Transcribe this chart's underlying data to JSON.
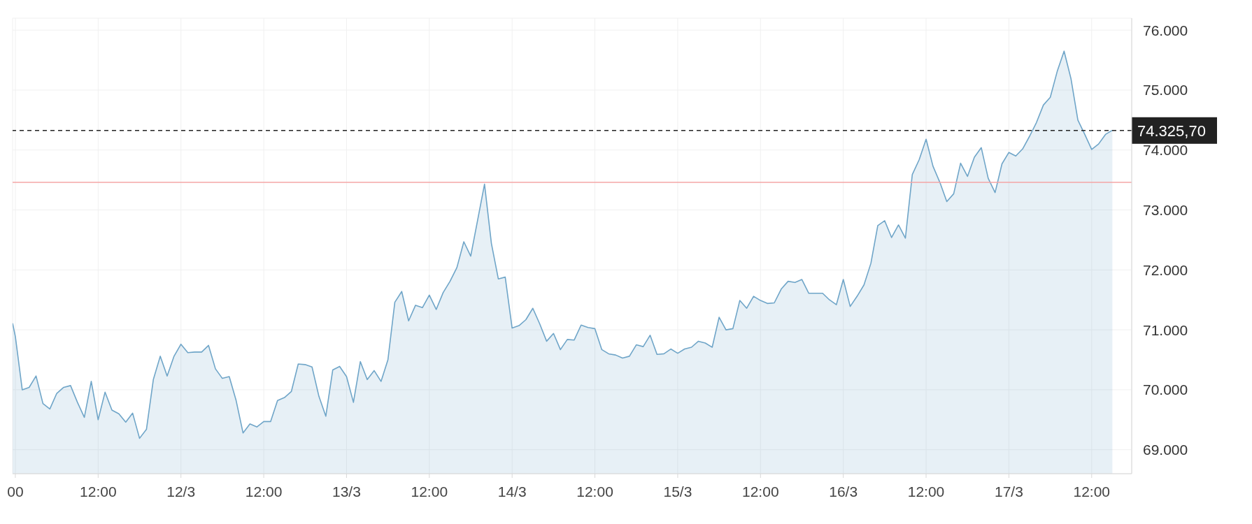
{
  "chart_data": {
    "type": "area",
    "x": [
      "--03-10T23:36",
      "--03-11T00:00",
      "--03-11T01:00",
      "--03-11T02:00",
      "--03-11T03:00",
      "--03-11T04:00",
      "--03-11T05:00",
      "--03-11T06:00",
      "--03-11T07:00",
      "--03-11T08:00",
      "--03-11T09:00",
      "--03-11T10:00",
      "--03-11T11:00",
      "--03-11T12:00",
      "--03-11T13:00",
      "--03-11T14:00",
      "--03-11T15:00",
      "--03-11T16:00",
      "--03-11T17:00",
      "--03-11T18:00",
      "--03-11T19:00",
      "--03-11T20:00",
      "--03-11T21:00",
      "--03-11T22:00",
      "--03-11T23:00",
      "--03-12T00:00",
      "--03-12T01:00",
      "--03-12T02:00",
      "--03-12T03:00",
      "--03-12T04:00",
      "--03-12T05:00",
      "--03-12T06:00",
      "--03-12T07:00",
      "--03-12T08:00",
      "--03-12T09:00",
      "--03-12T10:00",
      "--03-12T11:00",
      "--03-12T12:00",
      "--03-12T13:00",
      "--03-12T14:00",
      "--03-12T15:00",
      "--03-12T16:00",
      "--03-12T17:00",
      "--03-12T18:00",
      "--03-12T19:00",
      "--03-12T20:00",
      "--03-12T21:00",
      "--03-12T22:00",
      "--03-12T23:00",
      "--03-13T00:00",
      "--03-13T01:00",
      "--03-13T02:00",
      "--03-13T03:00",
      "--03-13T04:00",
      "--03-13T05:00",
      "--03-13T06:00",
      "--03-13T07:00",
      "--03-13T08:00",
      "--03-13T09:00",
      "--03-13T10:00",
      "--03-13T11:00",
      "--03-13T12:00",
      "--03-13T13:00",
      "--03-13T14:00",
      "--03-13T15:00",
      "--03-13T16:00",
      "--03-13T17:00",
      "--03-13T18:00",
      "--03-13T19:00",
      "--03-13T20:00",
      "--03-13T21:00",
      "--03-13T22:00",
      "--03-13T23:00",
      "--03-14T00:00",
      "--03-14T01:00",
      "--03-14T02:00",
      "--03-14T03:00",
      "--03-14T04:00",
      "--03-14T05:00",
      "--03-14T06:00",
      "--03-14T07:00",
      "--03-14T08:00",
      "--03-14T09:00",
      "--03-14T10:00",
      "--03-14T11:00",
      "--03-14T12:00",
      "--03-14T13:00",
      "--03-14T14:00",
      "--03-14T15:00",
      "--03-14T16:00",
      "--03-14T17:00",
      "--03-14T18:00",
      "--03-14T19:00",
      "--03-14T20:00",
      "--03-14T21:00",
      "--03-14T22:00",
      "--03-14T23:00",
      "--03-15T00:00",
      "--03-15T01:00",
      "--03-15T02:00",
      "--03-15T03:00",
      "--03-15T04:00",
      "--03-15T05:00",
      "--03-15T06:00",
      "--03-15T07:00",
      "--03-15T08:00",
      "--03-15T09:00",
      "--03-15T10:00",
      "--03-15T11:00",
      "--03-15T12:00",
      "--03-15T13:00",
      "--03-15T14:00",
      "--03-15T15:00",
      "--03-15T16:00",
      "--03-15T17:00",
      "--03-15T18:00",
      "--03-15T19:00",
      "--03-15T20:00",
      "--03-15T21:00",
      "--03-15T22:00",
      "--03-15T23:00",
      "--03-16T00:00",
      "--03-16T01:00",
      "--03-16T02:00",
      "--03-16T03:00",
      "--03-16T04:00",
      "--03-16T05:00",
      "--03-16T06:00",
      "--03-16T07:00",
      "--03-16T08:00",
      "--03-16T09:00",
      "--03-16T10:00",
      "--03-16T11:00",
      "--03-16T12:00",
      "--03-16T13:00",
      "--03-16T14:00",
      "--03-16T15:00",
      "--03-16T16:00",
      "--03-16T17:00",
      "--03-16T18:00",
      "--03-16T19:00",
      "--03-16T20:00",
      "--03-16T21:00",
      "--03-16T22:00",
      "--03-16T23:00",
      "--03-17T00:00",
      "--03-17T01:00",
      "--03-17T02:00",
      "--03-17T03:00",
      "--03-17T04:00",
      "--03-17T05:00",
      "--03-17T06:00",
      "--03-17T07:00",
      "--03-17T08:00",
      "--03-17T09:00",
      "--03-17T10:00",
      "--03-17T11:00",
      "--03-17T12:00",
      "--03-17T13:00",
      "--03-17T14:00",
      "--03-17T15:00"
    ],
    "series": [
      {
        "color": "#6fa5c8",
        "values": [
          71110,
          70890,
          70000,
          70040,
          70230,
          69770,
          69680,
          69940,
          70040,
          70070,
          69790,
          69540,
          70140,
          69500,
          69960,
          69660,
          69600,
          69460,
          69610,
          69190,
          69340,
          70170,
          70560,
          70230,
          70560,
          70760,
          70620,
          70630,
          70630,
          70740,
          70350,
          70190,
          70220,
          69820,
          69280,
          69430,
          69380,
          69470,
          69470,
          69820,
          69870,
          69970,
          70430,
          70420,
          70380,
          69890,
          69560,
          70330,
          70390,
          70220,
          69790,
          70470,
          70170,
          70320,
          70140,
          70500,
          71460,
          71640,
          71150,
          71410,
          71370,
          71580,
          71340,
          71620,
          71810,
          72040,
          72470,
          72230,
          72830,
          73430,
          72440,
          71850,
          71880,
          71030,
          71070,
          71170,
          71360,
          71100,
          70810,
          70940,
          70670,
          70840,
          70830,
          71080,
          71040,
          71020,
          70670,
          70600,
          70580,
          70530,
          70560,
          70750,
          70720,
          70910,
          70590,
          70600,
          70680,
          70610,
          70680,
          70710,
          70810,
          70780,
          70710,
          71210,
          71000,
          71020,
          71490,
          71360,
          71560,
          71490,
          71440,
          71450,
          71680,
          71810,
          71790,
          71840,
          71610,
          71610,
          71610,
          71500,
          71420,
          71840,
          71390,
          71560,
          71750,
          72110,
          72740,
          72820,
          72540,
          72750,
          72530,
          73590,
          73840,
          74180,
          73730,
          73460,
          73140,
          73270,
          73780,
          73560,
          73880,
          74040,
          73530,
          73290,
          73770,
          73960,
          73900,
          74020,
          74230,
          74460,
          74750,
          74880,
          75310,
          75650,
          75190,
          74500,
          74260,
          74010,
          74100,
          74260,
          74330
        ]
      }
    ],
    "xlim": [
      "--03-10T23:36",
      "--03-17T17:48"
    ],
    "xticks": [
      {
        "value": "--03-11T00:00",
        "label": "00"
      },
      {
        "value": "--03-11T12:00",
        "label": "12:00"
      },
      {
        "value": "--03-12T00:00",
        "label": "12/3"
      },
      {
        "value": "--03-12T12:00",
        "label": "12:00"
      },
      {
        "value": "--03-13T00:00",
        "label": "13/3"
      },
      {
        "value": "--03-13T12:00",
        "label": "12:00"
      },
      {
        "value": "--03-14T00:00",
        "label": "14/3"
      },
      {
        "value": "--03-14T12:00",
        "label": "12:00"
      },
      {
        "value": "--03-15T00:00",
        "label": "15/3"
      },
      {
        "value": "--03-15T12:00",
        "label": "12:00"
      },
      {
        "value": "--03-16T00:00",
        "label": "16/3"
      },
      {
        "value": "--03-16T12:00",
        "label": "12:00"
      },
      {
        "value": "--03-17T00:00",
        "label": "17/3"
      },
      {
        "value": "--03-17T12:00",
        "label": "12:00"
      }
    ],
    "ylim": [
      68600,
      76200
    ],
    "yticks": [
      {
        "value": 69000,
        "label": "69.000"
      },
      {
        "value": 70000,
        "label": "70.000"
      },
      {
        "value": 71000,
        "label": "71.000"
      },
      {
        "value": 72000,
        "label": "72.000"
      },
      {
        "value": 73000,
        "label": "73.000"
      },
      {
        "value": 74000,
        "label": "74.000"
      },
      {
        "value": 75000,
        "label": "75.000"
      },
      {
        "value": 76000,
        "label": "76.000"
      }
    ],
    "ref_lines": [
      {
        "axis": "y",
        "value": 74325.7,
        "label": "74.325,70",
        "color": "#222222",
        "line_style": "dashed"
      },
      {
        "axis": "y",
        "value": 73460,
        "color": "#f4a6a6",
        "line_style": "solid"
      }
    ],
    "grid": true,
    "marker": "none",
    "legend": false
  }
}
